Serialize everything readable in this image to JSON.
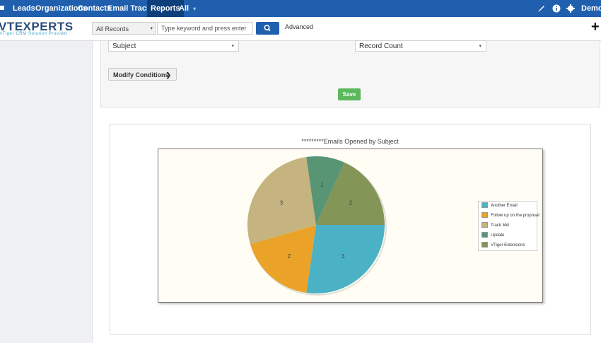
{
  "nav": {
    "items": [
      "Leads",
      "Organizations",
      "Contacts",
      "Email Tracking",
      "Reports",
      "All"
    ],
    "all_caret": "▾",
    "user": "Demo",
    "user_caret": "▾"
  },
  "logo": {
    "main": "VTEXPERTS",
    "tagline": "vTiger CRM Solution Provider"
  },
  "search": {
    "scope": "All Records",
    "scope_caret": "▾",
    "placeholder": "Type keyword and press enter",
    "advanced_label": "Advanced"
  },
  "header_actions": {
    "add_symbol": "+"
  },
  "report_config": {
    "group_by_field": "Subject",
    "measure_field": "Record Count",
    "caret": "▾",
    "modify_label": "Modify Conditions",
    "modify_caret": "❯",
    "save_label": "Save"
  },
  "colors": {
    "accent": "#1f5fad",
    "save_button": "#5cb85c",
    "plot_background": "#fffdf4"
  },
  "chart_data": {
    "type": "pie",
    "title": "*********Emails Opened by Subject",
    "slices": [
      {
        "label": "Another Email",
        "value": 3,
        "color": "#4bb2c5"
      },
      {
        "label": "Follow up on the proposal",
        "value": 2,
        "color": "#eaa228"
      },
      {
        "label": "Track Me!",
        "value": 3,
        "color": "#c5b47f"
      },
      {
        "label": "Update",
        "value": 1,
        "color": "#579575"
      },
      {
        "label": "VTiger Extensions",
        "value": 2,
        "color": "#839557"
      }
    ],
    "legend": "right"
  }
}
